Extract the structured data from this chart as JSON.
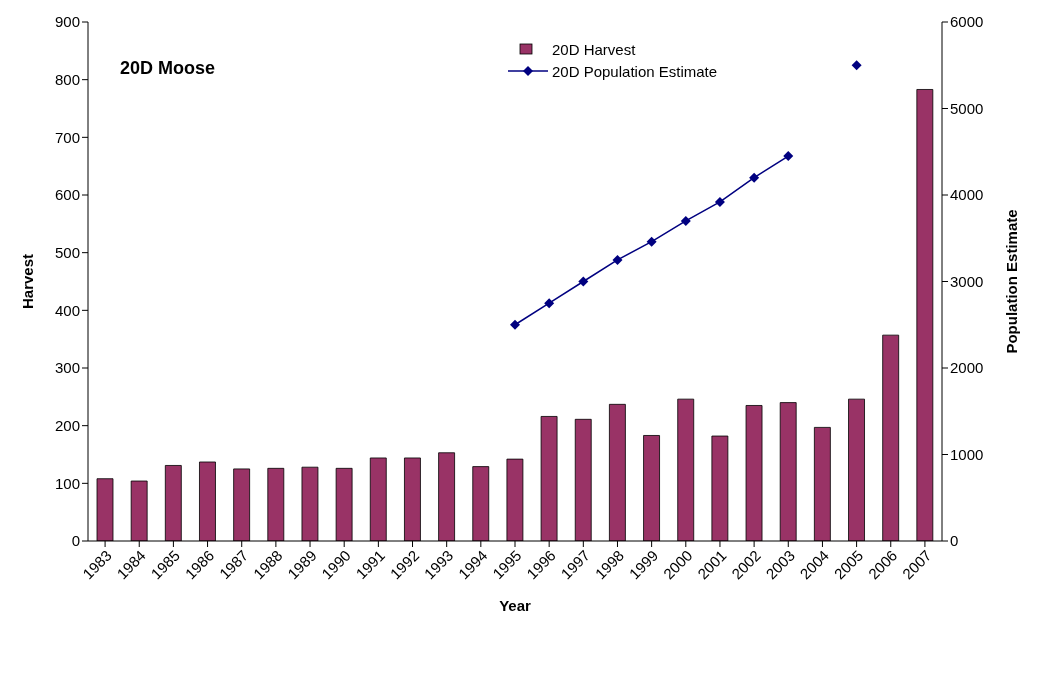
{
  "chart_data": {
    "type": "bar",
    "title": "20D Moose",
    "xlabel": "Year",
    "ylabel": "Harvest",
    "y2label": "Population Estimate",
    "categories": [
      "1983",
      "1984",
      "1985",
      "1986",
      "1987",
      "1988",
      "1989",
      "1990",
      "1991",
      "1992",
      "1993",
      "1994",
      "1995",
      "1996",
      "1997",
      "1998",
      "1999",
      "2000",
      "2001",
      "2002",
      "2003",
      "2004",
      "2005",
      "2006",
      "2007"
    ],
    "series": [
      {
        "name": "20D Harvest",
        "color": "#993366",
        "values": [
          108,
          104,
          131,
          137,
          125,
          126,
          128,
          126,
          144,
          144,
          153,
          129,
          142,
          216,
          211,
          237,
          183,
          246,
          182,
          235,
          240,
          197,
          246,
          357,
          783
        ]
      },
      {
        "name": "20D Population Estimate",
        "type": "line",
        "axis": "y2",
        "color": "#000080",
        "marker": "diamond",
        "values": [
          null,
          null,
          null,
          null,
          null,
          null,
          null,
          null,
          null,
          null,
          null,
          null,
          2500,
          2750,
          3000,
          3250,
          3460,
          3700,
          3920,
          4200,
          4450,
          null,
          5500,
          null,
          null
        ]
      }
    ],
    "ylim": [
      0,
      900
    ],
    "yticks": [
      0,
      100,
      200,
      300,
      400,
      500,
      600,
      700,
      800,
      900
    ],
    "y2lim": [
      0,
      6000
    ],
    "y2ticks": [
      0,
      1000,
      2000,
      3000,
      4000,
      5000,
      6000
    ],
    "legend": "top"
  }
}
